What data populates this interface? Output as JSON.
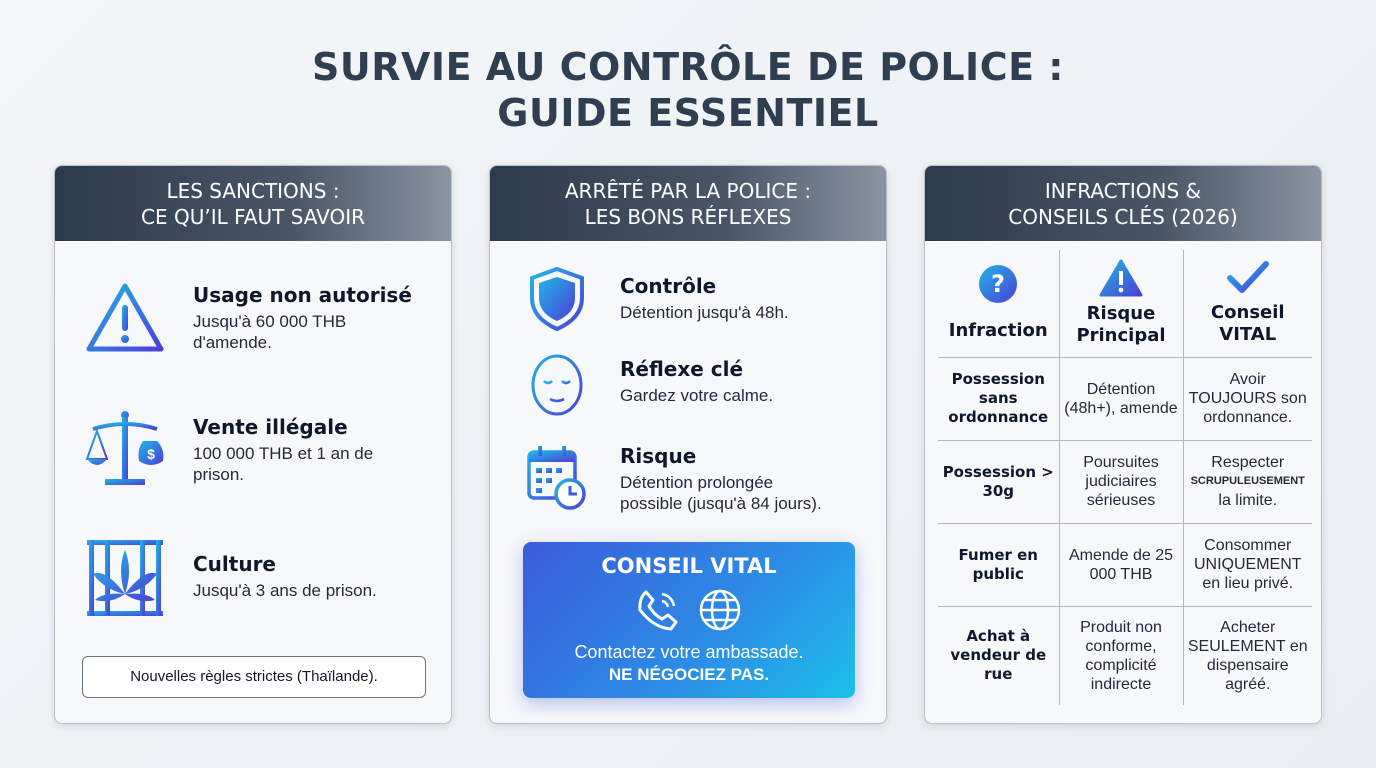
{
  "title": {
    "line1": "SURVIE AU CONTRÔLE DE POLICE :",
    "line2": "GUIDE ESSENTIEL"
  },
  "sanctions": {
    "header1": "LES SANCTIONS :",
    "header2": "CE QU’IL FAUT SAVOIR",
    "items": [
      {
        "icon": "warning-triangle-icon",
        "title": "Usage non autorisé",
        "text1": "Jusqu'à 60 000 THB",
        "text2": "d'amende."
      },
      {
        "icon": "scale-money-icon",
        "title": "Vente illégale",
        "text1": "100 000 THB et 1 an de",
        "text2": "prison."
      },
      {
        "icon": "cannabis-jail-icon",
        "title": "Culture",
        "text1": "Jusqu'à 3 ans de prison.",
        "text2": ""
      }
    ],
    "note": "Nouvelles règles strictes (Thaïlande)."
  },
  "reflexes": {
    "header1": "ARRÊTÉ PAR LA POLICE :",
    "header2": "LES BONS RÉFLEXES",
    "items": [
      {
        "icon": "shield-icon",
        "title": "Contrôle",
        "text1": "Détention jusqu'à 48h.",
        "text2": ""
      },
      {
        "icon": "calm-face-icon",
        "title": "Réflexe clé",
        "text1": "Gardez votre calme.",
        "text2": ""
      },
      {
        "icon": "calendar-clock-icon",
        "title": "Risque",
        "text1": "Détention prolongée",
        "text2": "possible (jusqu'à 84 jours)."
      }
    ],
    "vital": {
      "title": "CONSEIL VITAL",
      "line1": "Contactez votre ambassade.",
      "line2": "NE NÉGOCIEZ PAS."
    }
  },
  "infractions": {
    "header1": "INFRACTIONS &",
    "header2": "CONSEILS CLÉS (2026)",
    "columns": [
      {
        "l1": "Infraction",
        "l2": ""
      },
      {
        "l1": "Risque",
        "l2": "Principal"
      },
      {
        "l1": "Conseil",
        "l2": "VITAL"
      }
    ],
    "rows": [
      [
        "Possession sans ordonnance",
        "Détention (48h+), amende",
        "Avoir TOUJOURS son ordonnance."
      ],
      [
        "Possession > 30g",
        "Poursuites judiciaires sérieuses",
        "Respecter|SCRUPULEUSEMENT|la limite."
      ],
      [
        "Fumer en public",
        "Amende de 25 000 THB",
        "Consommer UNIQUEMENT en lieu privé."
      ],
      [
        "Achat à vendeur de rue",
        "Produit non conforme, complicité indirecte",
        "Acheter SEULEMENT en dispensaire agréé."
      ]
    ]
  },
  "colors": {
    "header_dark": "#2c3a4d",
    "accent_blue": "#3b5bdb",
    "accent_cyan": "#1ec0ea"
  }
}
